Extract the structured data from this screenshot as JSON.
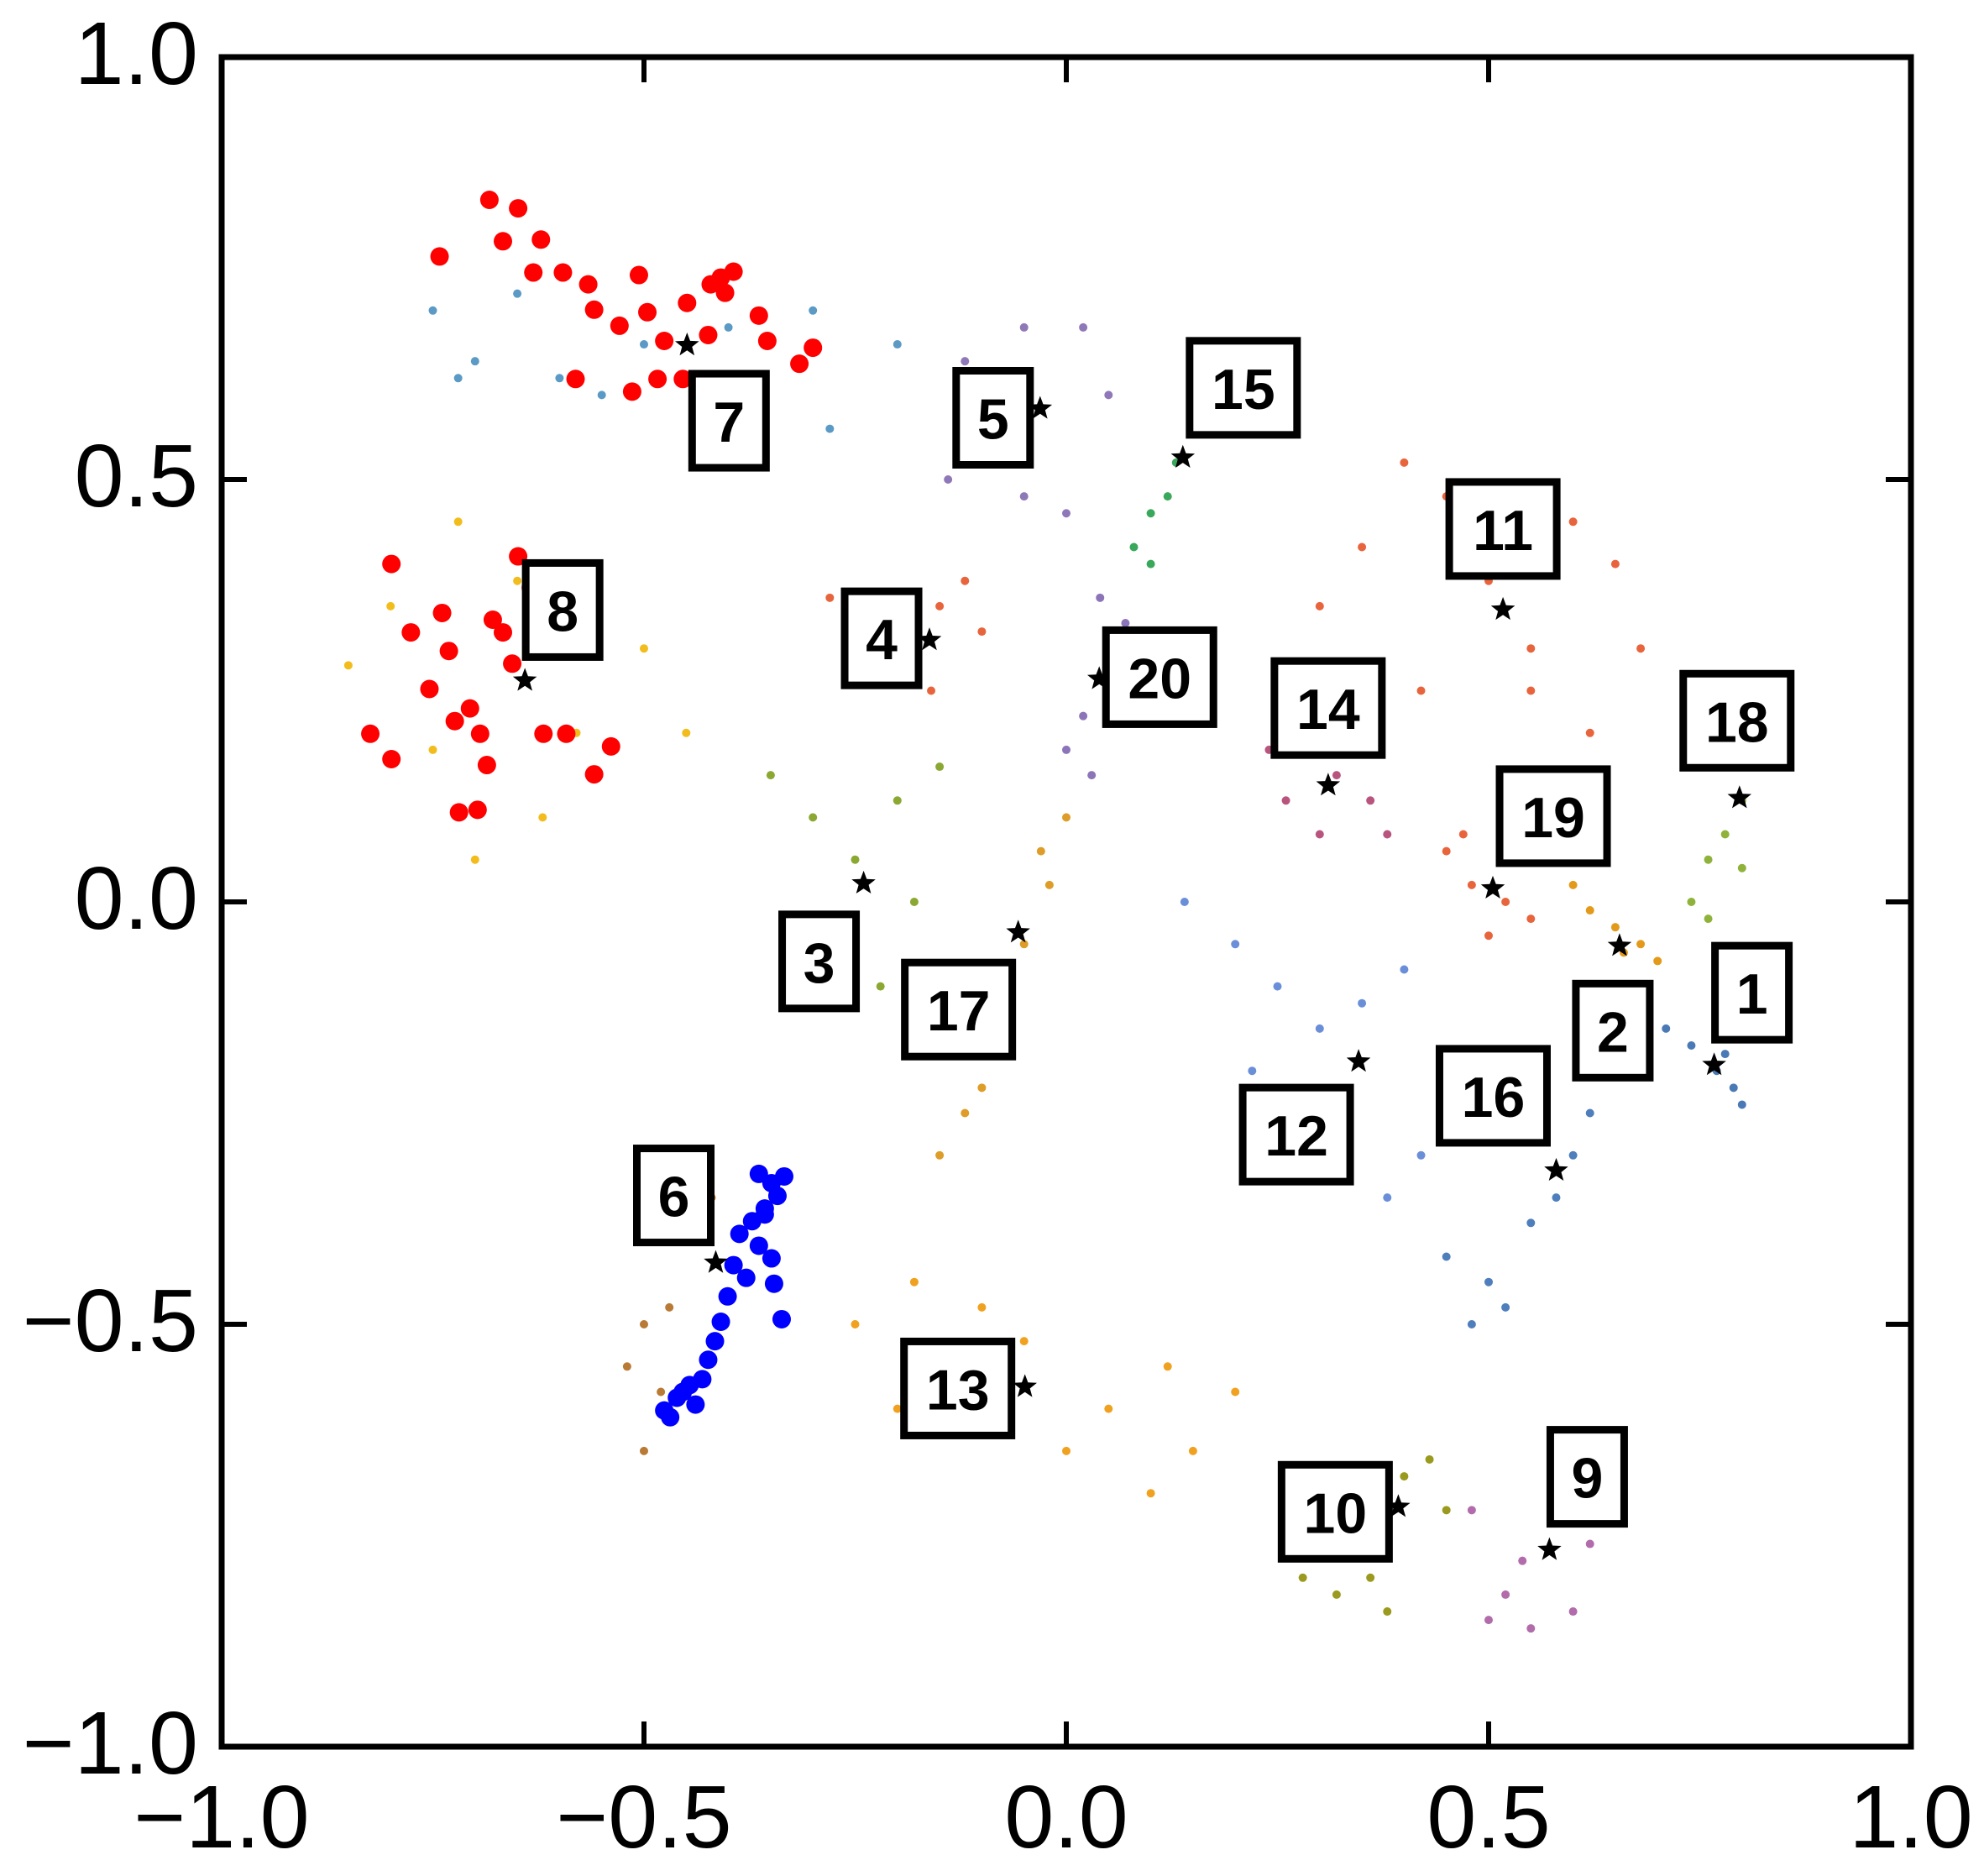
{
  "chart_data": {
    "type": "scatter",
    "xlim": [
      -1,
      1
    ],
    "ylim": [
      -1,
      1
    ],
    "xticks": [
      {
        "value": -1,
        "label": "−1.0"
      },
      {
        "value": -0.5,
        "label": "−0.5"
      },
      {
        "value": 0,
        "label": "0.0"
      },
      {
        "value": 0.5,
        "label": "0.5"
      },
      {
        "value": 1,
        "label": "1.0"
      }
    ],
    "yticks": [
      {
        "value": -1,
        "label": "−1.0"
      },
      {
        "value": -0.5,
        "label": "−0.5"
      },
      {
        "value": 0,
        "label": "0.0"
      },
      {
        "value": 0.5,
        "label": "0.5"
      },
      {
        "value": 1,
        "label": "1.0"
      }
    ],
    "series": [
      {
        "name": "1",
        "color": "#4a7ab5",
        "center": [
          0.767,
          -0.193
        ],
        "x": [
          0.71,
          0.74,
          0.77,
          0.79,
          0.8,
          0.78
        ],
        "y": [
          -0.15,
          -0.17,
          -0.2,
          -0.22,
          -0.24,
          -0.18
        ]
      },
      {
        "name": "2",
        "color": "#e39a1b",
        "center": [
          0.655,
          -0.052
        ],
        "x": [
          0.6,
          0.62,
          0.65,
          0.68,
          0.7,
          0.66
        ],
        "y": [
          0.02,
          -0.01,
          -0.03,
          -0.05,
          -0.07,
          -0.06
        ]
      },
      {
        "name": "3",
        "color": "#8aa832",
        "center": [
          -0.24,
          0.022
        ],
        "x": [
          -0.35,
          -0.3,
          -0.25,
          -0.2,
          -0.15,
          -0.3,
          -0.22,
          -0.33,
          -0.18
        ],
        "y": [
          0.15,
          0.1,
          0.05,
          0.12,
          0.16,
          -0.05,
          -0.1,
          -0.12,
          0.0
        ]
      },
      {
        "name": "4",
        "color": "#e8643c",
        "center": [
          -0.162,
          0.31
        ],
        "x": [
          -0.28,
          -0.22,
          -0.15,
          -0.12,
          -0.1,
          -0.16,
          -0.2
        ],
        "y": [
          0.36,
          0.33,
          0.35,
          0.38,
          0.32,
          0.25,
          0.28
        ]
      },
      {
        "name": "5",
        "color": "#8f78b8",
        "center": [
          -0.031,
          0.584
        ],
        "x": [
          -0.14,
          -0.1,
          -0.05,
          0.0,
          0.05,
          0.02,
          -0.05,
          -0.12,
          -0.08
        ],
        "y": [
          0.5,
          0.52,
          0.48,
          0.46,
          0.6,
          0.68,
          0.68,
          0.64,
          0.58
        ]
      },
      {
        "name": "6",
        "color": "#b87a35",
        "center": [
          -0.415,
          -0.427
        ],
        "x": [
          -0.44,
          -0.42,
          -0.45,
          -0.5,
          -0.52,
          -0.48,
          -0.5,
          -0.47
        ],
        "y": [
          -0.3,
          -0.35,
          -0.4,
          -0.5,
          -0.55,
          -0.58,
          -0.65,
          -0.48
        ]
      },
      {
        "name": "7",
        "color": "#5a9ac5",
        "center": [
          -0.449,
          0.659
        ],
        "x": [
          -0.75,
          -0.7,
          -0.65,
          -0.6,
          -0.5,
          -0.4,
          -0.3,
          -0.2,
          -0.72,
          -0.55,
          -0.38,
          -0.28
        ],
        "y": [
          0.7,
          0.64,
          0.72,
          0.62,
          0.66,
          0.68,
          0.7,
          0.66,
          0.62,
          0.6,
          0.62,
          0.56
        ]
      },
      {
        "name": "8",
        "color": "#f2bd1c",
        "center": [
          -0.641,
          0.262
        ],
        "x": [
          -0.85,
          -0.8,
          -0.72,
          -0.65,
          -0.58,
          -0.5,
          -0.45,
          -0.7,
          -0.62,
          -0.75
        ],
        "y": [
          0.28,
          0.35,
          0.45,
          0.38,
          0.2,
          0.3,
          0.2,
          0.05,
          0.1,
          0.18
        ]
      },
      {
        "name": "9",
        "color": "#b26cab",
        "center": [
          0.572,
          -0.767
        ],
        "x": [
          0.48,
          0.52,
          0.55,
          0.58,
          0.62,
          0.6,
          0.54,
          0.5
        ],
        "y": [
          -0.72,
          -0.82,
          -0.86,
          -0.7,
          -0.76,
          -0.84,
          -0.78,
          -0.85
        ]
      },
      {
        "name": "10",
        "color": "#9a9a1e",
        "center": [
          0.393,
          -0.716
        ],
        "x": [
          0.28,
          0.32,
          0.36,
          0.4,
          0.43,
          0.45,
          0.38,
          0.35
        ],
        "y": [
          -0.8,
          -0.82,
          -0.8,
          -0.68,
          -0.66,
          -0.72,
          -0.84,
          -0.74
        ]
      },
      {
        "name": "11",
        "color": "#e8643c",
        "center": [
          0.517,
          0.346
        ],
        "x": [
          0.3,
          0.35,
          0.4,
          0.45,
          0.5,
          0.55,
          0.6,
          0.65,
          0.68,
          0.42,
          0.55,
          0.62,
          0.52
        ],
        "y": [
          0.35,
          0.42,
          0.52,
          0.48,
          0.38,
          0.3,
          0.45,
          0.4,
          0.3,
          0.25,
          0.25,
          0.2,
          0.42
        ]
      },
      {
        "name": "12",
        "color": "#6a8fd8",
        "center": [
          0.346,
          -0.189
        ],
        "x": [
          0.14,
          0.2,
          0.25,
          0.3,
          0.35,
          0.4,
          0.45,
          0.3,
          0.38,
          0.22,
          0.42,
          0.48
        ],
        "y": [
          0.0,
          -0.05,
          -0.1,
          -0.15,
          -0.12,
          -0.08,
          -0.2,
          -0.3,
          -0.35,
          -0.2,
          -0.3,
          -0.25
        ]
      },
      {
        "name": "13",
        "color": "#f0a11f",
        "center": [
          -0.049,
          -0.574
        ],
        "x": [
          -0.25,
          -0.18,
          -0.1,
          -0.05,
          0.05,
          0.12,
          0.2,
          0.1,
          0.0,
          -0.2,
          0.15
        ],
        "y": [
          -0.5,
          -0.45,
          -0.48,
          -0.52,
          -0.6,
          -0.55,
          -0.58,
          -0.7,
          -0.65,
          -0.6,
          -0.65
        ]
      },
      {
        "name": "14",
        "color": "#b8557f",
        "center": [
          0.31,
          0.138
        ],
        "x": [
          0.24,
          0.28,
          0.32,
          0.36,
          0.38,
          0.3,
          0.26
        ],
        "y": [
          0.18,
          0.2,
          0.15,
          0.12,
          0.08,
          0.08,
          0.12
        ]
      },
      {
        "name": "15",
        "color": "#3aa85a",
        "center": [
          0.138,
          0.526
        ],
        "x": [
          0.08,
          0.1,
          0.13,
          0.16,
          0.18,
          0.12,
          0.1
        ],
        "y": [
          0.42,
          0.46,
          0.52,
          0.56,
          0.6,
          0.48,
          0.4
        ]
      },
      {
        "name": "16",
        "color": "#4f7ebc",
        "center": [
          0.58,
          -0.318
        ],
        "x": [
          0.45,
          0.5,
          0.55,
          0.6,
          0.62,
          0.58,
          0.52,
          0.48
        ],
        "y": [
          -0.42,
          -0.45,
          -0.38,
          -0.3,
          -0.25,
          -0.35,
          -0.48,
          -0.5
        ]
      },
      {
        "name": "17",
        "color": "#dd9d28",
        "center": [
          -0.057,
          -0.036
        ],
        "x": [
          -0.15,
          -0.1,
          -0.08,
          -0.05,
          -0.02,
          0.0,
          -0.12,
          -0.03
        ],
        "y": [
          -0.3,
          -0.22,
          -0.15,
          -0.05,
          0.02,
          0.1,
          -0.25,
          0.06
        ]
      },
      {
        "name": "18",
        "color": "#8fb33a",
        "center": [
          0.797,
          0.123
        ],
        "x": [
          0.74,
          0.76,
          0.78,
          0.8,
          0.8,
          0.76
        ],
        "y": [
          0.0,
          0.05,
          0.08,
          0.12,
          0.04,
          -0.02
        ]
      },
      {
        "name": "19",
        "color": "#e8643c",
        "center": [
          0.505,
          0.016
        ],
        "x": [
          0.45,
          0.48,
          0.52,
          0.55,
          0.5,
          0.47
        ],
        "y": [
          0.06,
          0.02,
          0.0,
          -0.02,
          -0.04,
          0.08
        ]
      },
      {
        "name": "20",
        "color": "#8b74b8",
        "center": [
          0.039,
          0.264
        ],
        "x": [
          0.0,
          0.02,
          0.05,
          0.07,
          0.04,
          0.03
        ],
        "y": [
          0.18,
          0.22,
          0.28,
          0.33,
          0.36,
          0.15
        ]
      }
    ],
    "highlights": [
      {
        "color": "#ff0000",
        "x": [
          -0.742,
          -0.683,
          -0.649,
          -0.667,
          -0.622,
          -0.631,
          -0.596,
          -0.566,
          -0.559,
          -0.529,
          -0.506,
          -0.496,
          -0.476,
          -0.449,
          -0.424,
          -0.409,
          -0.394,
          -0.364,
          -0.354,
          -0.316,
          -0.3,
          -0.581,
          -0.514,
          -0.484,
          -0.454,
          -0.421,
          -0.404,
          -0.799,
          -0.824,
          -0.799,
          -0.776,
          -0.754,
          -0.739,
          -0.731,
          -0.724,
          -0.719,
          -0.697,
          -0.706,
          -0.694,
          -0.686,
          -0.679,
          -0.667,
          -0.656,
          -0.649,
          -0.634,
          -0.619,
          -0.592,
          -0.559,
          -0.539
        ],
        "y": [
          0.764,
          0.831,
          0.821,
          0.782,
          0.784,
          0.745,
          0.745,
          0.731,
          0.701,
          0.682,
          0.742,
          0.698,
          0.664,
          0.709,
          0.671,
          0.739,
          0.746,
          0.694,
          0.664,
          0.637,
          0.656,
          0.619,
          0.604,
          0.619,
          0.619,
          0.731,
          0.721,
          0.4,
          0.199,
          0.169,
          0.319,
          0.252,
          0.342,
          0.297,
          0.214,
          0.106,
          0.109,
          0.229,
          0.199,
          0.162,
          0.334,
          0.319,
          0.282,
          0.409,
          0.372,
          0.199,
          0.199,
          0.151,
          0.184
        ]
      },
      {
        "color": "#0000ff",
        "x": [
          -0.364,
          -0.349,
          -0.334,
          -0.342,
          -0.357,
          -0.372,
          -0.364,
          -0.349,
          -0.379,
          -0.346,
          -0.394,
          -0.401,
          -0.409,
          -0.416,
          -0.424,
          -0.431,
          -0.446,
          -0.461,
          -0.476,
          -0.469,
          -0.439,
          -0.454,
          -0.337,
          -0.357,
          -0.387
        ],
        "y": [
          -0.322,
          -0.333,
          -0.325,
          -0.348,
          -0.363,
          -0.378,
          -0.407,
          -0.422,
          -0.445,
          -0.452,
          -0.43,
          -0.467,
          -0.497,
          -0.52,
          -0.542,
          -0.565,
          -0.572,
          -0.587,
          -0.602,
          -0.61,
          -0.595,
          -0.58,
          -0.494,
          -0.37,
          -0.393
        ]
      }
    ]
  }
}
